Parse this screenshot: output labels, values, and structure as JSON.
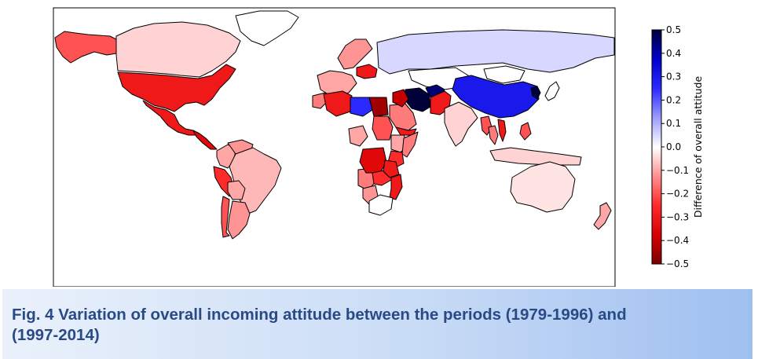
{
  "chart_data": {
    "type": "choropleth",
    "colorbar": {
      "label": "Difference of overall attitude",
      "range": [
        -0.5,
        0.5
      ],
      "ticks": [
        "0.5",
        "0.4",
        "0.3",
        "0.2",
        "0.1",
        "0.0",
        "−0.1",
        "−0.2",
        "−0.3",
        "−0.4",
        "−0.5"
      ],
      "colormap": [
        "#7a0000",
        "#d80000",
        "#ff2a2a",
        "#ff9090",
        "#ffffff",
        "#9c9cff",
        "#2a2aff",
        "#0000cc",
        "#00003a"
      ]
    },
    "regions": [
      {
        "name": "Alaska",
        "value": -0.2
      },
      {
        "name": "Canada",
        "value": -0.05
      },
      {
        "name": "Greenland",
        "value": 0.0
      },
      {
        "name": "USA",
        "value": -0.3
      },
      {
        "name": "Mexico",
        "value": -0.3
      },
      {
        "name": "Central America",
        "value": -0.35
      },
      {
        "name": "Colombia",
        "value": -0.1
      },
      {
        "name": "Venezuela",
        "value": -0.12
      },
      {
        "name": "Peru",
        "value": -0.25
      },
      {
        "name": "Brazil",
        "value": -0.08
      },
      {
        "name": "Bolivia",
        "value": -0.1
      },
      {
        "name": "Argentina",
        "value": -0.12
      },
      {
        "name": "Chile",
        "value": -0.2
      },
      {
        "name": "Scandinavia",
        "value": -0.12
      },
      {
        "name": "Western Europe",
        "value": -0.1
      },
      {
        "name": "Poland",
        "value": -0.3
      },
      {
        "name": "Russia",
        "value": 0.05
      },
      {
        "name": "Kazakhstan",
        "value": 0.0
      },
      {
        "name": "Mongolia",
        "value": 0.0
      },
      {
        "name": "China",
        "value": 0.3
      },
      {
        "name": "Korea",
        "value": 0.5
      },
      {
        "name": "Japan",
        "value": 0.0
      },
      {
        "name": "Iran",
        "value": 0.5
      },
      {
        "name": "Afghanistan",
        "value": 0.45
      },
      {
        "name": "Pakistan",
        "value": -0.3
      },
      {
        "name": "India",
        "value": -0.05
      },
      {
        "name": "Myanmar",
        "value": -0.2
      },
      {
        "name": "Thailand",
        "value": -0.15
      },
      {
        "name": "Vietnam",
        "value": -0.3
      },
      {
        "name": "Philippines",
        "value": -0.2
      },
      {
        "name": "Indonesia",
        "value": -0.05
      },
      {
        "name": "Australia",
        "value": -0.03
      },
      {
        "name": "New Zealand",
        "value": -0.1
      },
      {
        "name": "Morocco",
        "value": -0.15
      },
      {
        "name": "Algeria",
        "value": -0.3
      },
      {
        "name": "Libya",
        "value": 0.25
      },
      {
        "name": "Egypt",
        "value": -0.45
      },
      {
        "name": "Sudan",
        "value": -0.2
      },
      {
        "name": "Saudi Arabia",
        "value": -0.15
      },
      {
        "name": "Iraq",
        "value": -0.4
      },
      {
        "name": "Yemen",
        "value": -0.3
      },
      {
        "name": "Ethiopia",
        "value": -0.1
      },
      {
        "name": "Somalia",
        "value": -0.15
      },
      {
        "name": "Kenya",
        "value": -0.25
      },
      {
        "name": "Nigeria",
        "value": -0.1
      },
      {
        "name": "Angola",
        "value": -0.15
      },
      {
        "name": "DR Congo",
        "value": -0.35
      },
      {
        "name": "Zambia",
        "value": -0.25
      },
      {
        "name": "Tanzania",
        "value": -0.3
      },
      {
        "name": "Mozambique",
        "value": -0.3
      },
      {
        "name": "Namibia",
        "value": -0.12
      },
      {
        "name": "South Africa",
        "value": 0.0
      }
    ]
  },
  "caption": {
    "line1": "Fig. 4 Variation of overall incoming attitude between the periods (1979-1996) and",
    "line2": "(1997-2014)"
  }
}
